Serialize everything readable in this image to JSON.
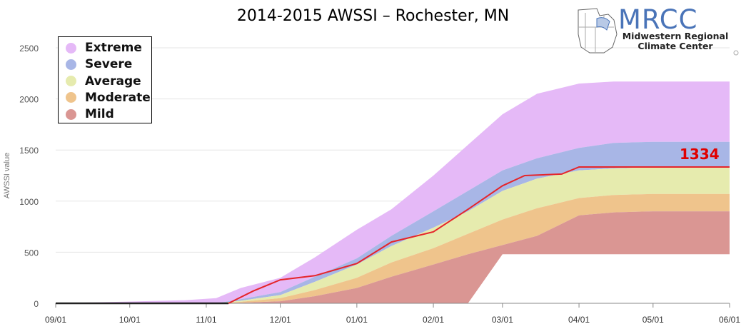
{
  "title": "2014-2015 AWSSI – Rochester, MN",
  "logo": {
    "acronym": "MRCC",
    "line1": "Midwestern Regional",
    "line2": "Climate Center"
  },
  "colors": {
    "extreme": "#e5b9f7",
    "severe": "#a8b6e6",
    "average": "#e6ebae",
    "moderate": "#efc48c",
    "mild": "#da9693",
    "observed": "#e5252a",
    "end_label": "#e00000",
    "grid": "#e5e5e5"
  },
  "chart_data": {
    "type": "area",
    "title": "2014-2015 AWSSI – Rochester, MN",
    "xlabel": "",
    "ylabel": "AWSSI value",
    "x_ticks": [
      "09/01",
      "10/01",
      "11/01",
      "12/01",
      "01/01",
      "02/01",
      "03/01",
      "04/01",
      "05/01",
      "06/01"
    ],
    "y_ticks": [
      0,
      500,
      1000,
      1500,
      2000,
      2500
    ],
    "ylim": [
      0,
      2600
    ],
    "grid": true,
    "legend_position": "top-left",
    "x_dates": [
      "2014-09-01",
      "2014-10-23",
      "2014-11-05",
      "2014-11-15",
      "2014-12-01",
      "2014-12-15",
      "2015-01-01",
      "2015-01-15",
      "2015-02-01",
      "2015-02-15",
      "2015-03-01",
      "2015-03-15",
      "2015-04-01",
      "2015-04-15",
      "2015-05-01",
      "2015-05-15",
      "2015-06-01"
    ],
    "series": [
      {
        "name": "Extreme",
        "values": [
          0,
          30,
          50,
          150,
          250,
          450,
          720,
          920,
          1250,
          1550,
          1850,
          2050,
          2150,
          2170,
          2170,
          2170,
          2170
        ]
      },
      {
        "name": "Severe",
        "values": [
          0,
          0,
          0,
          40,
          110,
          260,
          440,
          660,
          900,
          1100,
          1300,
          1420,
          1520,
          1570,
          1580,
          1580,
          1580
        ]
      },
      {
        "name": "Average",
        "values": [
          0,
          0,
          0,
          25,
          80,
          210,
          380,
          560,
          740,
          900,
          1100,
          1220,
          1300,
          1320,
          1330,
          1330,
          1330
        ]
      },
      {
        "name": "Moderate",
        "values": [
          0,
          0,
          0,
          15,
          50,
          130,
          250,
          400,
          540,
          680,
          820,
          930,
          1030,
          1060,
          1070,
          1070,
          1070
        ]
      },
      {
        "name": "Mild",
        "values": [
          0,
          0,
          0,
          5,
          20,
          70,
          150,
          260,
          380,
          480,
          570,
          660,
          860,
          890,
          900,
          900,
          900
        ]
      }
    ],
    "mild_floor": {
      "x_dates": [
        "2015-03-01",
        "2015-06-01"
      ],
      "value": 480
    },
    "observed": {
      "name": "2014-2015",
      "x_dates": [
        "2014-09-01",
        "2014-11-10",
        "2014-11-20",
        "2014-12-01",
        "2014-12-15",
        "2015-01-01",
        "2015-01-15",
        "2015-02-01",
        "2015-02-15",
        "2015-03-01",
        "2015-03-10",
        "2015-03-25",
        "2015-04-01",
        "2015-06-01"
      ],
      "values": [
        0,
        0,
        120,
        230,
        270,
        390,
        600,
        700,
        920,
        1150,
        1250,
        1265,
        1334,
        1334
      ],
      "end_value": 1334
    }
  }
}
